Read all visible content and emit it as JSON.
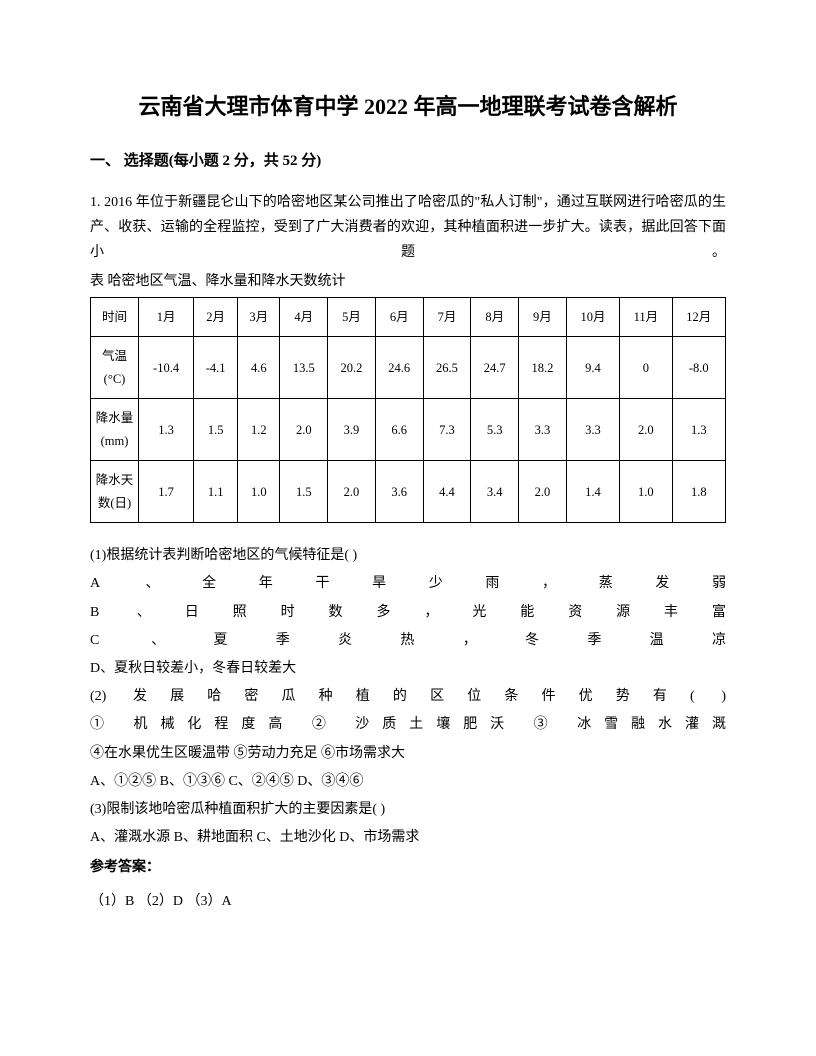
{
  "title": "云南省大理市体育中学 2022 年高一地理联考试卷含解析",
  "section_header": "一、 选择题(每小题 2 分，共 52 分)",
  "intro": "1. 2016 年位于新疆昆仑山下的哈密地区某公司推出了哈密瓜的\"私人订制\"，通过互联网进行哈密瓜的生产、收获、运输的全程监控，受到了广大消费者的欢迎，其种植面积进一步扩大。读表，据此回答下面小题。",
  "table_caption": "表  哈密地区气温、降水量和降水天数统计",
  "table": {
    "header": [
      "时间",
      "1月",
      "2月",
      "3月",
      "4月",
      "5月",
      "6月",
      "7月",
      "8月",
      "9月",
      "10月",
      "11月",
      "12月"
    ],
    "rows": [
      {
        "label": "气温\n(°C)",
        "values": [
          "-10.4",
          "-4.1",
          "4.6",
          "13.5",
          "20.2",
          "24.6",
          "26.5",
          "24.7",
          "18.2",
          "9.4",
          "0",
          "-8.0"
        ]
      },
      {
        "label": "降水量\n(mm)",
        "values": [
          "1.3",
          "1.5",
          "1.2",
          "2.0",
          "3.9",
          "6.6",
          "7.3",
          "5.3",
          "3.3",
          "3.3",
          "2.0",
          "1.3"
        ]
      },
      {
        "label": "降水天\n数(日)",
        "values": [
          "1.7",
          "1.1",
          "1.0",
          "1.5",
          "2.0",
          "3.6",
          "4.4",
          "3.4",
          "2.0",
          "1.4",
          "1.0",
          "1.8"
        ]
      }
    ]
  },
  "q1_prompt": "(1)根据统计表判断哈密地区的气候特征是(   )",
  "q1_opts": {
    "A": "A 、全年干旱少雨，蒸发弱",
    "B": "B 、日照时数多，光能资源丰富",
    "C": "C 、夏季炎热，冬季温凉",
    "D": "D、夏秋日较差小，冬春日较差大"
  },
  "q2_prompt": "(2) 发展哈密瓜种植的区位条件优势有(  )",
  "q2_items": "① 机械化程度高  ② 沙质土壤肥沃  ③ 冰雪融水灌溉",
  "q2_items2": "④在水果优生区暖温带 ⑤劳动力充足 ⑥市场需求大",
  "q2_opts": "A、①②⑤  B、①③⑥ C、②④⑤ D、③④⑥",
  "q3_prompt": "(3)限制该地哈密瓜种植面积扩大的主要因素是(   )",
  "q3_opts": "A、灌溉水源  B、耕地面积  C、土地沙化  D、市场需求",
  "answer_label": "参考答案：",
  "answers": "（1）B （2）D  （3）A"
}
